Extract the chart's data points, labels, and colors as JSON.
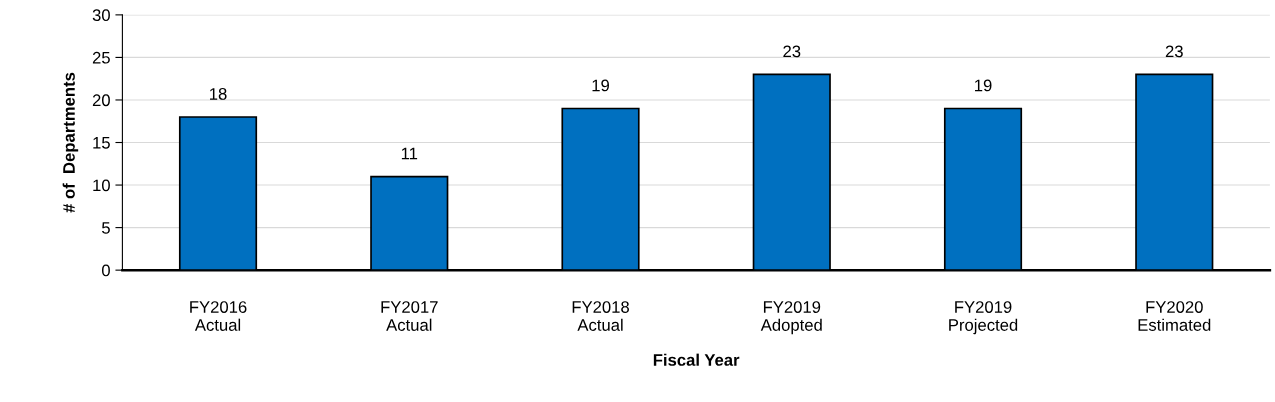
{
  "chart_data": {
    "type": "bar",
    "xlabel": "Fiscal Year",
    "ylabel": "# of  Departments",
    "categories": [
      "FY2016\nActual",
      "FY2017\nActual",
      "FY2018\nActual",
      "FY2019\nAdopted",
      "FY2019\nProjected",
      "FY2020\nEstimated"
    ],
    "values": [
      18,
      11,
      19,
      23,
      19,
      23
    ],
    "color": "#0070c0",
    "ylim": [
      0,
      30
    ],
    "yticks": [
      0,
      5,
      10,
      15,
      20,
      25,
      30
    ],
    "grid": "y",
    "data_labels": true
  }
}
